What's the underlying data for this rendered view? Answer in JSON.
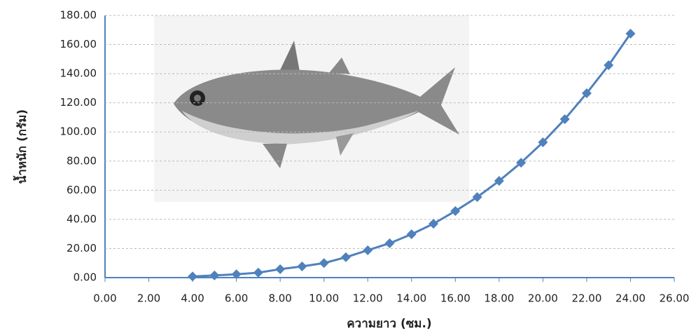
{
  "chart_data": {
    "type": "line",
    "x_label": "ความยาว (ซม.)",
    "y_label": "น้ำหนัก (กรัม)",
    "x": [
      4,
      5,
      6,
      7,
      8,
      9,
      10,
      11,
      12,
      13,
      14,
      15,
      16,
      17,
      18,
      19,
      20,
      21,
      22,
      23,
      24
    ],
    "values": [
      0.8,
      1.5,
      2.3,
      3.4,
      5.8,
      7.7,
      10,
      14,
      18.8,
      23.6,
      29.8,
      37,
      45.7,
      55.3,
      66.4,
      78.9,
      92.9,
      108.8,
      126.6,
      145.8,
      167.5
    ],
    "color": "#4f81bd",
    "xlim": [
      0,
      26
    ],
    "xticks": [
      {
        "value": 0,
        "label": "0.00"
      },
      {
        "value": 2,
        "label": "2.00"
      },
      {
        "value": 4,
        "label": "4.00"
      },
      {
        "value": 6,
        "label": "6.00"
      },
      {
        "value": 8,
        "label": "8.00"
      },
      {
        "value": 10,
        "label": "10.00"
      },
      {
        "value": 12,
        "label": "12.00"
      },
      {
        "value": 14,
        "label": "14.00"
      },
      {
        "value": 16,
        "label": "16.00"
      },
      {
        "value": 18,
        "label": "18.00"
      },
      {
        "value": 20,
        "label": "20.00"
      },
      {
        "value": 22,
        "label": "22.00"
      },
      {
        "value": 24,
        "label": "24.00"
      },
      {
        "value": 26,
        "label": "26.00"
      }
    ],
    "ylim": [
      0,
      180
    ],
    "yticks": [
      {
        "value": 0,
        "label": "0.00"
      },
      {
        "value": 20,
        "label": "20.00"
      },
      {
        "value": 40,
        "label": "40.00"
      },
      {
        "value": 60,
        "label": "60.00"
      },
      {
        "value": 80,
        "label": "80.00"
      },
      {
        "value": 100,
        "label": "100.00"
      },
      {
        "value": 120,
        "label": "120.00"
      },
      {
        "value": 140,
        "label": "140.00"
      },
      {
        "value": 160,
        "label": "160.00"
      },
      {
        "value": 180,
        "label": "180.00"
      }
    ],
    "grid": true
  }
}
